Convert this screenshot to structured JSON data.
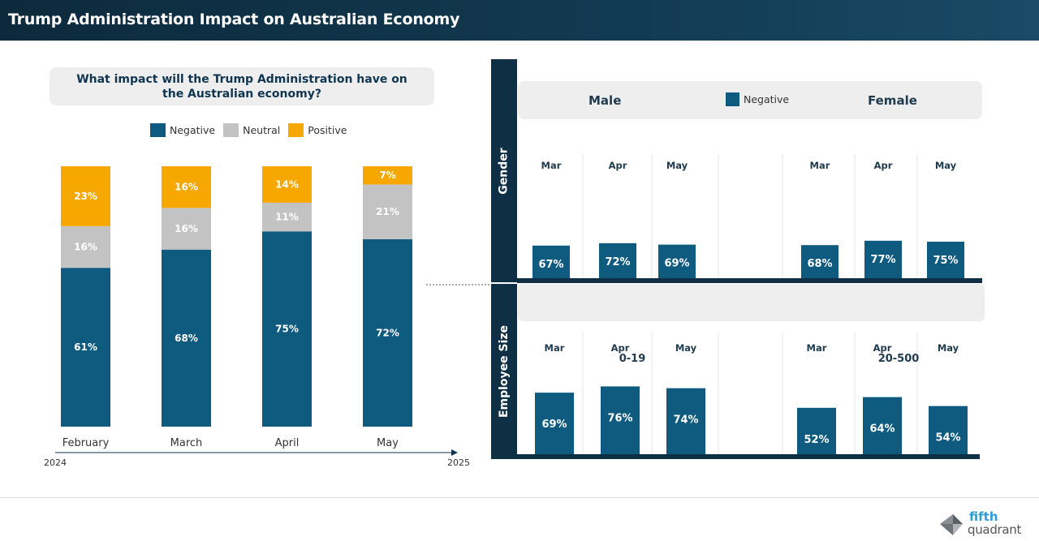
{
  "header": {
    "title": "Trump Administration Impact on Australian Economy"
  },
  "question": "What impact will the Trump Administration have on the Australian economy?",
  "colors": {
    "negative": "#0f5b80",
    "neutral": "#c3c3c3",
    "positive": "#f6a800",
    "dark": "#0f2f44"
  },
  "legend": [
    {
      "label": "Negative",
      "color": "#0f5b80"
    },
    {
      "label": "Neutral",
      "color": "#c3c3c3"
    },
    {
      "label": "Positive",
      "color": "#f6a800"
    }
  ],
  "timeline": {
    "start": "2024",
    "end": "2025"
  },
  "chart_data": [
    {
      "type": "bar",
      "stacked": true,
      "categories": [
        "February",
        "March",
        "April",
        "May"
      ],
      "series": [
        {
          "name": "Negative",
          "values": [
            61,
            68,
            75,
            72
          ],
          "labels": [
            "61%",
            "68%",
            "75%",
            "72%"
          ]
        },
        {
          "name": "Neutral",
          "values": [
            16,
            16,
            11,
            21
          ],
          "labels": [
            "16%",
            "16%",
            "11%",
            "21%"
          ]
        },
        {
          "name": "Positive",
          "values": [
            23,
            16,
            14,
            7
          ],
          "labels": [
            "23%",
            "16%",
            "14%",
            "7%"
          ]
        }
      ],
      "ylim": [
        0,
        100
      ]
    },
    {
      "type": "bar",
      "panel": "Gender",
      "legend": "Negative",
      "groups": [
        {
          "name": "Male",
          "categories": [
            "Mar",
            "Apr",
            "May"
          ],
          "values": [
            67,
            72,
            69
          ],
          "labels": [
            "67%",
            "72%",
            "69%"
          ]
        },
        {
          "name": "Female",
          "categories": [
            "Mar",
            "Apr",
            "May"
          ],
          "values": [
            68,
            77,
            75
          ],
          "labels": [
            "68%",
            "77%",
            "75%"
          ]
        }
      ]
    },
    {
      "type": "bar",
      "panel": "Employee Size",
      "groups": [
        {
          "name": "0-19",
          "categories": [
            "Mar",
            "Apr",
            "May"
          ],
          "values": [
            69,
            76,
            74
          ],
          "labels": [
            "69%",
            "76%",
            "74%"
          ]
        },
        {
          "name": "20-500",
          "categories": [
            "Mar",
            "Apr",
            "May"
          ],
          "values": [
            52,
            64,
            54
          ],
          "labels": [
            "52%",
            "64%",
            "54%"
          ]
        }
      ]
    }
  ],
  "logo": {
    "line1": "fifth",
    "line2": "quadrant"
  }
}
